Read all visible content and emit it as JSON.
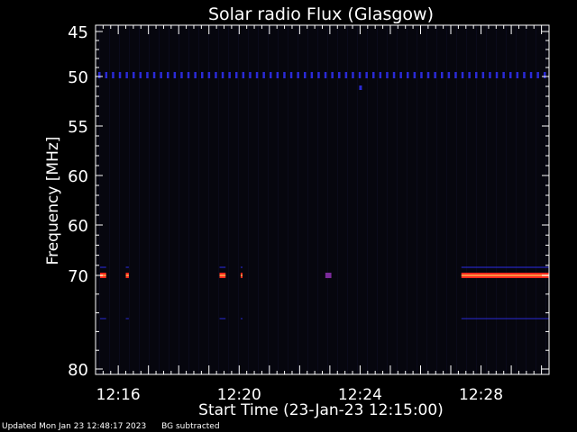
{
  "chart_data": {
    "type": "heatmap",
    "title": "Solar radio Flux (Glasgow)",
    "xlabel": "Start Time (23-Jan-23 12:15:00)",
    "ylabel": "Frequency [MHz]",
    "x_range_minutes_after_1215": [
      0.25,
      15.25
    ],
    "x_ticks": [
      {
        "minute": 1,
        "label": "12:16"
      },
      {
        "minute": 5,
        "label": "12:20"
      },
      {
        "minute": 9,
        "label": "12:24"
      },
      {
        "minute": 13,
        "label": "12:28"
      }
    ],
    "y_ticks": [
      "45",
      "50",
      "55",
      "60",
      "60",
      "70",
      "80"
    ],
    "background": "#06060e",
    "features": [
      {
        "type": "band",
        "freq_label": "50",
        "x_start": 0.25,
        "x_end": 15.25,
        "color": "#2a2ad6",
        "kind": "dashed"
      },
      {
        "type": "band",
        "freq_label": "70",
        "x_start": 0.4,
        "x_end": 0.6,
        "color": "#ff2a1e"
      },
      {
        "type": "band",
        "freq_label": "70",
        "x_start": 1.25,
        "x_end": 1.35,
        "color": "#ff2a1e"
      },
      {
        "type": "band",
        "freq_label": "70",
        "x_start": 4.35,
        "x_end": 4.55,
        "color": "#ff2a1e"
      },
      {
        "type": "band",
        "freq_label": "70",
        "x_start": 5.05,
        "x_end": 5.1,
        "color": "#ff2a1e"
      },
      {
        "type": "band",
        "freq_label": "70",
        "x_start": 7.85,
        "x_end": 8.05,
        "color": "#7a2a9a"
      },
      {
        "type": "band",
        "freq_label": "70",
        "x_start": 12.35,
        "x_end": 15.25,
        "color": "#ff2a1e"
      }
    ],
    "colors": {
      "axis": "#ffffff",
      "blue": "#2a2ad6",
      "red": "#ff2a1e",
      "yellow": "#ffe060"
    }
  },
  "footer": {
    "updated": "Updated Mon Jan 23 12:48:17 2023",
    "note": "BG subtracted"
  }
}
